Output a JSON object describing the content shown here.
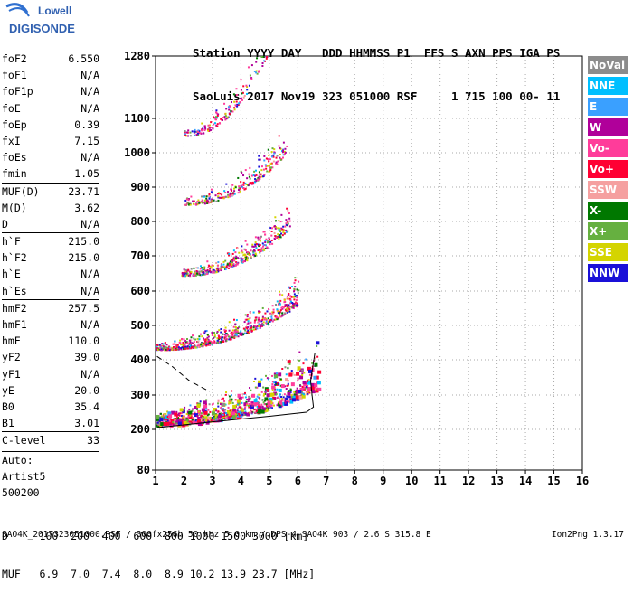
{
  "logo": {
    "top": "Lowell",
    "bottom": "DIGISONDE"
  },
  "header": {
    "line1": "Station YYYY DAY   DDD HHMMSS P1  FFS S AXN PPS IGA PS",
    "line2": "SaoLuis 2017 Nov19 323 051000 RSF     1 715 100 00- 11"
  },
  "params": [
    {
      "name": "foF2",
      "value": "6.550"
    },
    {
      "name": "foF1",
      "value": "N/A"
    },
    {
      "name": "foF1p",
      "value": "N/A"
    },
    {
      "name": "foE",
      "value": "N/A"
    },
    {
      "name": "foEp",
      "value": "0.39"
    },
    {
      "name": "fxI",
      "value": "7.15"
    },
    {
      "name": "foEs",
      "value": "N/A"
    },
    {
      "name": "fmin",
      "value": "1.05"
    },
    {
      "name": "MUF(D)",
      "value": "23.71",
      "sep": true
    },
    {
      "name": "M(D)",
      "value": "3.62"
    },
    {
      "name": "D",
      "value": "N/A"
    },
    {
      "name": "h`F",
      "value": "215.0",
      "sep": true
    },
    {
      "name": "h`F2",
      "value": "215.0"
    },
    {
      "name": "h`E",
      "value": "N/A"
    },
    {
      "name": "h`Es",
      "value": "N/A"
    },
    {
      "name": "hmF2",
      "value": "257.5",
      "sep": true
    },
    {
      "name": "hmF1",
      "value": "N/A"
    },
    {
      "name": "hmE",
      "value": "110.0"
    },
    {
      "name": "yF2",
      "value": "39.0"
    },
    {
      "name": "yF1",
      "value": "N/A"
    },
    {
      "name": "yE",
      "value": "20.0"
    },
    {
      "name": "B0",
      "value": "35.4"
    },
    {
      "name": "B1",
      "value": "3.01"
    },
    {
      "name": "C-level",
      "value": "33",
      "sep": true
    }
  ],
  "auto": [
    "Auto:",
    "Artist5",
    "500200"
  ],
  "legend": [
    {
      "label": "NoVal",
      "color": "#8c8c8c"
    },
    {
      "label": "NNE",
      "color": "#00bfff"
    },
    {
      "label": "E",
      "color": "#3aa0ff"
    },
    {
      "label": "W",
      "color": "#b0009a"
    },
    {
      "label": "Vo-",
      "color": "#ff3c9a"
    },
    {
      "label": "Vo+",
      "color": "#ff0033"
    },
    {
      "label": "SSW",
      "color": "#f5a0a0"
    },
    {
      "label": "X-",
      "color": "#007800"
    },
    {
      "label": "X+",
      "color": "#66b040"
    },
    {
      "label": "SSE",
      "color": "#d4d400"
    },
    {
      "label": "NNW",
      "color": "#1a10d8"
    }
  ],
  "footer": {
    "line1": "D     100  200  400  600  800 1000 1500 3000 [km]",
    "line2": "MUF   6.9  7.0  7.4  8.0  8.9 10.2 13.9 23.7 [MHz]",
    "line3": "SAO4K_2017323051000.RSF / 300fx256h 50 kHz 5.0 km / DPS-4 SAO4K 903 / 2.6 S 315.8 E",
    "version": "Ion2Png 1.3.17"
  },
  "chart_data": {
    "type": "scatter",
    "xlim": [
      1,
      16
    ],
    "ylim": [
      80,
      1280
    ],
    "x_ticks": [
      1,
      2,
      3,
      4,
      5,
      6,
      7,
      8,
      9,
      10,
      11,
      12,
      13,
      14,
      15,
      16
    ],
    "y_ticks": [
      80,
      200,
      300,
      400,
      500,
      600,
      700,
      800,
      900,
      1000,
      1100,
      1280
    ],
    "grid": true,
    "legend_placement": "right",
    "traces": [
      {
        "name": "F2 1st hop",
        "x0": 1.0,
        "x1": 6.7,
        "y0": 215,
        "y1": 320,
        "curve": true
      },
      {
        "name": "F2 2nd hop",
        "x0": 1.0,
        "x1": 6.0,
        "y0": 430,
        "y1": 560,
        "curve": true
      },
      {
        "name": "F2 3rd hop",
        "x0": 1.9,
        "x1": 5.7,
        "y0": 645,
        "y1": 780,
        "curve": true
      },
      {
        "name": "F2 4th hop",
        "x0": 2.0,
        "x1": 5.6,
        "y0": 850,
        "y1": 1000,
        "curve": true
      },
      {
        "name": "F2 5th hop",
        "x0": 2.0,
        "x1": 4.9,
        "y0": 1050,
        "y1": 1280,
        "curve": true
      }
    ],
    "profile": [
      [
        1.05,
        205
      ],
      [
        3.0,
        222
      ],
      [
        5.0,
        238
      ],
      [
        6.3,
        250
      ],
      [
        6.55,
        265
      ],
      [
        6.5,
        300
      ],
      [
        6.45,
        340
      ],
      [
        6.6,
        420
      ]
    ],
    "dashed_profile": [
      [
        1.05,
        410
      ],
      [
        1.6,
        380
      ],
      [
        2.2,
        340
      ],
      [
        2.9,
        310
      ]
    ]
  }
}
